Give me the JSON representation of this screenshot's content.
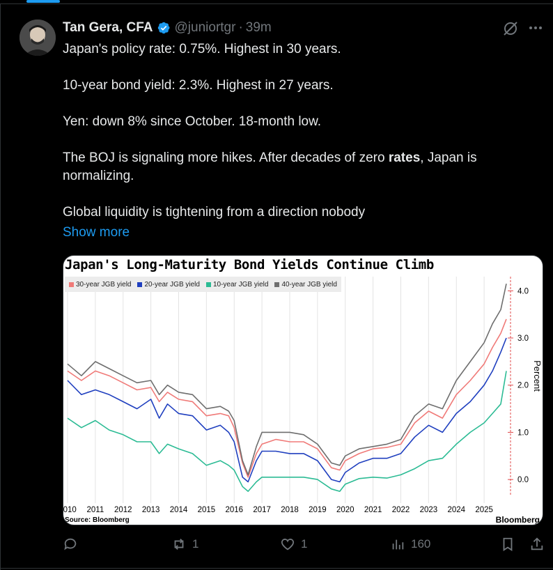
{
  "tweet": {
    "author_name": "Tan Gera, CFA",
    "handle": "@juniortgr",
    "separator": "·",
    "time": "39m",
    "paragraphs": [
      "Japan's policy rate: 0.75%. Highest in 30 years.",
      "10-year bond yield: 2.3%. Highest in 27 years.",
      "Yen: down 8% since October. 18-month low."
    ],
    "boj_before": "The BOJ is signaling more hikes. After decades of zero ",
    "boj_bold": "rates",
    "boj_after": ", Japan is normalizing.",
    "last_line": "Global liquidity is tightening from a direction nobody",
    "show_more": "Show more"
  },
  "icons": {
    "verified": "verified-badge-icon",
    "grok": "grok-icon",
    "more": "more-icon",
    "reply": "reply-icon",
    "repost": "repost-icon",
    "like": "like-icon",
    "views": "views-icon",
    "bookmark": "bookmark-icon",
    "share": "share-icon"
  },
  "actions": {
    "reply_count": "",
    "repost_count": "1",
    "like_count": "1",
    "view_count": "160"
  },
  "colors": {
    "accent": "#1d9bf0",
    "muted": "#71767b",
    "background": "#000000"
  },
  "chart_data": {
    "type": "line",
    "title": "Japan's Long-Maturity Bond Yields Continue Climb",
    "source": "Source: Bloomberg",
    "brand": "Bloomberg",
    "ylabel": "Percent",
    "ylim": [
      -0.5,
      4.3
    ],
    "yticks": [
      "4.0",
      "3.0",
      "2.0",
      "1.0",
      "0.0"
    ],
    "xticks": [
      "2010",
      "2011",
      "2012",
      "2013",
      "2014",
      "2015",
      "2016",
      "2017",
      "2018",
      "2019",
      "2020",
      "2021",
      "2022",
      "2023",
      "2024",
      "2025"
    ],
    "xlim": [
      2009.9,
      2025.9
    ],
    "grid": "vertical",
    "legend_placement": "top-left",
    "series": [
      {
        "name": "30-year JGB yield",
        "color": "#f07a78",
        "points": [
          [
            2010,
            2.3
          ],
          [
            2010.5,
            2.1
          ],
          [
            2011,
            2.3
          ],
          [
            2011.5,
            2.2
          ],
          [
            2012,
            2.05
          ],
          [
            2012.5,
            1.9
          ],
          [
            2013,
            1.95
          ],
          [
            2013.3,
            1.65
          ],
          [
            2013.6,
            1.85
          ],
          [
            2014,
            1.7
          ],
          [
            2014.5,
            1.65
          ],
          [
            2015,
            1.35
          ],
          [
            2015.5,
            1.4
          ],
          [
            2015.8,
            1.35
          ],
          [
            2016,
            1.1
          ],
          [
            2016.3,
            0.35
          ],
          [
            2016.5,
            0.05
          ],
          [
            2016.8,
            0.55
          ],
          [
            2017,
            0.75
          ],
          [
            2017.5,
            0.85
          ],
          [
            2018,
            0.8
          ],
          [
            2018.5,
            0.8
          ],
          [
            2019,
            0.65
          ],
          [
            2019.5,
            0.25
          ],
          [
            2019.8,
            0.2
          ],
          [
            2020,
            0.4
          ],
          [
            2020.5,
            0.55
          ],
          [
            2021,
            0.65
          ],
          [
            2021.5,
            0.68
          ],
          [
            2022,
            0.75
          ],
          [
            2022.5,
            1.2
          ],
          [
            2023,
            1.45
          ],
          [
            2023.5,
            1.3
          ],
          [
            2024,
            1.8
          ],
          [
            2024.5,
            2.1
          ],
          [
            2025,
            2.45
          ],
          [
            2025.3,
            2.8
          ],
          [
            2025.6,
            3.1
          ],
          [
            2025.8,
            3.4
          ]
        ]
      },
      {
        "name": "20-year JGB yield",
        "color": "#1f3fbf",
        "points": [
          [
            2010,
            2.1
          ],
          [
            2010.5,
            1.8
          ],
          [
            2011,
            1.9
          ],
          [
            2011.5,
            1.8
          ],
          [
            2012,
            1.65
          ],
          [
            2012.5,
            1.5
          ],
          [
            2013,
            1.7
          ],
          [
            2013.3,
            1.3
          ],
          [
            2013.6,
            1.6
          ],
          [
            2014,
            1.4
          ],
          [
            2014.5,
            1.35
          ],
          [
            2015,
            1.05
          ],
          [
            2015.5,
            1.15
          ],
          [
            2015.8,
            1.0
          ],
          [
            2016,
            0.8
          ],
          [
            2016.3,
            0.05
          ],
          [
            2016.5,
            -0.05
          ],
          [
            2016.8,
            0.4
          ],
          [
            2017,
            0.6
          ],
          [
            2017.5,
            0.6
          ],
          [
            2018,
            0.55
          ],
          [
            2018.5,
            0.55
          ],
          [
            2019,
            0.4
          ],
          [
            2019.5,
            0.0
          ],
          [
            2019.8,
            -0.05
          ],
          [
            2020,
            0.15
          ],
          [
            2020.5,
            0.35
          ],
          [
            2021,
            0.45
          ],
          [
            2021.5,
            0.45
          ],
          [
            2022,
            0.55
          ],
          [
            2022.5,
            0.9
          ],
          [
            2023,
            1.15
          ],
          [
            2023.5,
            1.0
          ],
          [
            2024,
            1.4
          ],
          [
            2024.5,
            1.65
          ],
          [
            2025,
            2.0
          ],
          [
            2025.3,
            2.3
          ],
          [
            2025.6,
            2.7
          ],
          [
            2025.8,
            3.0
          ]
        ]
      },
      {
        "name": "10-year JGB yield",
        "color": "#2bbb94",
        "points": [
          [
            2010,
            1.3
          ],
          [
            2010.5,
            1.1
          ],
          [
            2011,
            1.25
          ],
          [
            2011.5,
            1.05
          ],
          [
            2012,
            0.95
          ],
          [
            2012.5,
            0.8
          ],
          [
            2013,
            0.8
          ],
          [
            2013.3,
            0.55
          ],
          [
            2013.6,
            0.75
          ],
          [
            2014,
            0.65
          ],
          [
            2014.5,
            0.55
          ],
          [
            2015,
            0.3
          ],
          [
            2015.5,
            0.4
          ],
          [
            2015.8,
            0.3
          ],
          [
            2016,
            0.2
          ],
          [
            2016.3,
            -0.15
          ],
          [
            2016.5,
            -0.25
          ],
          [
            2016.8,
            -0.05
          ],
          [
            2017,
            0.05
          ],
          [
            2017.5,
            0.05
          ],
          [
            2018,
            0.05
          ],
          [
            2018.5,
            0.05
          ],
          [
            2019,
            0.0
          ],
          [
            2019.5,
            -0.2
          ],
          [
            2019.8,
            -0.25
          ],
          [
            2020,
            -0.1
          ],
          [
            2020.5,
            0.02
          ],
          [
            2021,
            0.05
          ],
          [
            2021.5,
            0.03
          ],
          [
            2022,
            0.1
          ],
          [
            2022.5,
            0.23
          ],
          [
            2023,
            0.4
          ],
          [
            2023.5,
            0.45
          ],
          [
            2024,
            0.75
          ],
          [
            2024.5,
            1.0
          ],
          [
            2025,
            1.2
          ],
          [
            2025.3,
            1.4
          ],
          [
            2025.6,
            1.6
          ],
          [
            2025.8,
            2.3
          ]
        ]
      },
      {
        "name": "40-year JGB yield",
        "color": "#6e6e6e",
        "points": [
          [
            2010,
            2.45
          ],
          [
            2010.5,
            2.2
          ],
          [
            2011,
            2.5
          ],
          [
            2011.5,
            2.35
          ],
          [
            2012,
            2.2
          ],
          [
            2012.5,
            2.05
          ],
          [
            2013,
            2.1
          ],
          [
            2013.3,
            1.8
          ],
          [
            2013.6,
            2.0
          ],
          [
            2014,
            1.85
          ],
          [
            2014.5,
            1.8
          ],
          [
            2015,
            1.5
          ],
          [
            2015.5,
            1.55
          ],
          [
            2015.8,
            1.45
          ],
          [
            2016,
            1.25
          ],
          [
            2016.3,
            0.4
          ],
          [
            2016.5,
            0.1
          ],
          [
            2016.8,
            0.7
          ],
          [
            2017,
            1.0
          ],
          [
            2017.5,
            1.0
          ],
          [
            2018,
            1.0
          ],
          [
            2018.5,
            0.95
          ],
          [
            2019,
            0.75
          ],
          [
            2019.5,
            0.35
          ],
          [
            2019.8,
            0.3
          ],
          [
            2020,
            0.5
          ],
          [
            2020.5,
            0.65
          ],
          [
            2021,
            0.7
          ],
          [
            2021.5,
            0.75
          ],
          [
            2022,
            0.85
          ],
          [
            2022.5,
            1.35
          ],
          [
            2023,
            1.6
          ],
          [
            2023.5,
            1.5
          ],
          [
            2024,
            2.1
          ],
          [
            2024.5,
            2.5
          ],
          [
            2025,
            2.9
          ],
          [
            2025.3,
            3.3
          ],
          [
            2025.6,
            3.6
          ],
          [
            2025.8,
            4.15
          ]
        ]
      }
    ]
  }
}
